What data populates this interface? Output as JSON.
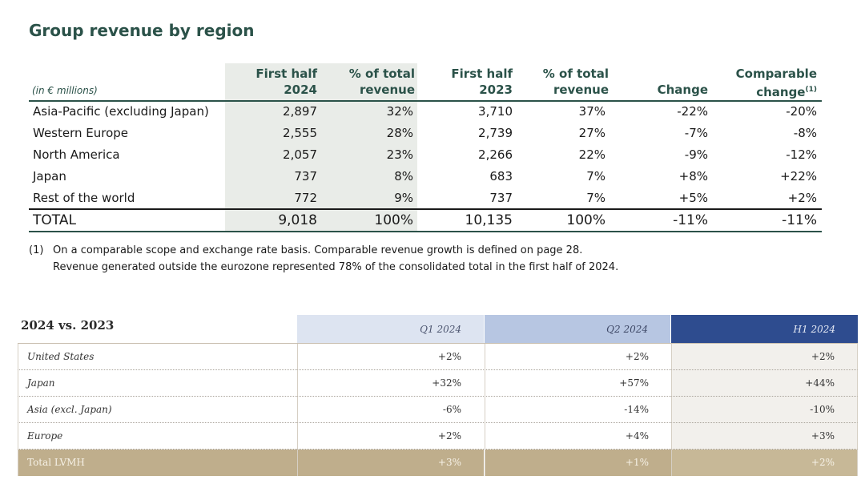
{
  "region_table": {
    "title": "Group revenue by region",
    "units": "(in € millions)",
    "columns": [
      {
        "line1": "First half",
        "line2": "2024"
      },
      {
        "line1": "% of total",
        "line2": "revenue"
      },
      {
        "line1": "First half",
        "line2": "2023"
      },
      {
        "line1": "% of total",
        "line2": "revenue"
      },
      {
        "line1": "",
        "line2": "Change"
      },
      {
        "line1": "Comparable",
        "line2": "change",
        "sup": "(1)"
      }
    ],
    "rows": [
      {
        "name": "Asia-Pacific (excluding Japan)",
        "h1_2024": "2,897",
        "pct_2024": "32%",
        "h1_2023": "3,710",
        "pct_2023": "37%",
        "change": "-22%",
        "comparable": "-20%"
      },
      {
        "name": "Western Europe",
        "h1_2024": "2,555",
        "pct_2024": "28%",
        "h1_2023": "2,739",
        "pct_2023": "27%",
        "change": "-7%",
        "comparable": "-8%"
      },
      {
        "name": "North America",
        "h1_2024": "2,057",
        "pct_2024": "23%",
        "h1_2023": "2,266",
        "pct_2023": "22%",
        "change": "-9%",
        "comparable": "-12%"
      },
      {
        "name": "Japan",
        "h1_2024": "737",
        "pct_2024": "8%",
        "h1_2023": "683",
        "pct_2023": "7%",
        "change": "+8%",
        "comparable": "+22%"
      },
      {
        "name": "Rest of the world",
        "h1_2024": "772",
        "pct_2024": "9%",
        "h1_2023": "737",
        "pct_2023": "7%",
        "change": "+5%",
        "comparable": "+2%"
      }
    ],
    "total": {
      "name": "TOTAL",
      "h1_2024": "9,018",
      "pct_2024": "100%",
      "h1_2023": "10,135",
      "pct_2023": "100%",
      "change": "-11%",
      "comparable": "-11%"
    },
    "footnote": {
      "mark": "(1)",
      "line1": "On a comparable scope and exchange rate basis. Comparable revenue growth is defined on page 28.",
      "line2": "Revenue generated outside the eurozone represented 78% of the consolidated total in the first half of 2024."
    }
  },
  "comparison_table": {
    "title": "2024 vs. 2023",
    "headers": [
      "Q1 2024",
      "Q2 2024",
      "H1 2024"
    ],
    "rows": [
      {
        "label": "United States",
        "q1": "+2%",
        "q2": "+2%",
        "h1": "+2%"
      },
      {
        "label": "Japan",
        "q1": "+32%",
        "q2": "+57%",
        "h1": "+44%"
      },
      {
        "label": "Asia (excl. Japan)",
        "q1": "-6%",
        "q2": "-14%",
        "h1": "-10%"
      },
      {
        "label": "Europe",
        "q1": "+2%",
        "q2": "+4%",
        "h1": "+3%"
      }
    ],
    "total": {
      "label": "Total LVMH",
      "q1": "+3%",
      "q2": "+1%",
      "h1": "+2%"
    },
    "colors": {
      "q1_header": "#dde4f1",
      "q2_header": "#b7c6e2",
      "h1_header": "#2e4c8f",
      "total_row": "#bfae8c"
    }
  }
}
